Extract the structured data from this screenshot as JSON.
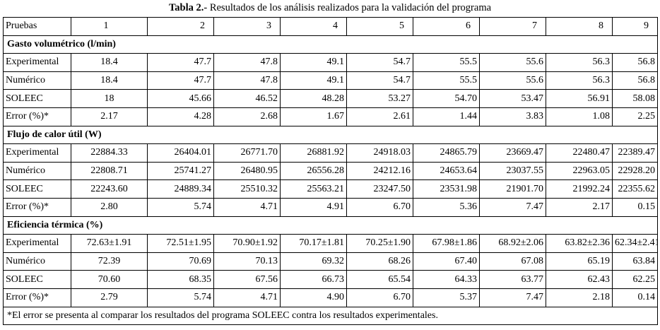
{
  "caption": {
    "prefix": "Tabla 2.",
    "text": "- Resultados de los análisis realizados para la validación del programa"
  },
  "header": {
    "label": "Pruebas",
    "columns": [
      "1",
      "2",
      "3",
      "4",
      "5",
      "6",
      "7",
      "8",
      "9"
    ]
  },
  "sections": [
    {
      "title": "Gasto volumétrico (l/min)",
      "rows": [
        {
          "label": "Experimental",
          "values": [
            "18.4",
            "47.7",
            "47.8",
            "49.1",
            "54.7",
            "55.5",
            "55.6",
            "56.3",
            "56.8"
          ]
        },
        {
          "label": "Numérico",
          "values": [
            "18.4",
            "47.7",
            "47.8",
            "49.1",
            "54.7",
            "55.5",
            "55.6",
            "56.3",
            "56.8"
          ]
        },
        {
          "label": "SOLEEC",
          "values": [
            "18",
            "45.66",
            "46.52",
            "48.28",
            "53.27",
            "54.70",
            "53.47",
            "56.91",
            "58.08"
          ]
        },
        {
          "label": "Error (%)*",
          "values": [
            "2.17",
            "4.28",
            "2.68",
            "1.67",
            "2.61",
            "1.44",
            "3.83",
            "1.08",
            "2.25"
          ]
        }
      ]
    },
    {
      "title": "Flujo de calor útil (W)",
      "rows": [
        {
          "label": "Experimental",
          "values": [
            "22884.33",
            "26404.01",
            "26771.70",
            "26881.92",
            "24918.03",
            "24865.79",
            "23669.47",
            "22480.47",
            "22389.47"
          ]
        },
        {
          "label": "Numérico",
          "values": [
            "22808.71",
            "25741.27",
            "26480.95",
            "26556.28",
            "24212.16",
            "24653.64",
            "23037.55",
            "22963.05",
            "22928.20"
          ]
        },
        {
          "label": "SOLEEC",
          "values": [
            "22243.60",
            "24889.34",
            "25510.32",
            "25563.21",
            "23247.50",
            "23531.98",
            "21901.70",
            "21992.24",
            "22355.62"
          ]
        },
        {
          "label": "Error (%)*",
          "values": [
            "2.80",
            "5.74",
            "4.71",
            "4.91",
            "6.70",
            "5.36",
            "7.47",
            "2.17",
            "0.15"
          ]
        }
      ]
    },
    {
      "title": "Eficiencia térmica (%)",
      "rows": [
        {
          "label": "Experimental",
          "values": [
            "72.63±1.91",
            "72.51±1.95",
            "70.90±1.92",
            "70.17±1.81",
            "70.25±1.90",
            "67.98±1.86",
            "68.92±2.06",
            "63.82±2.36",
            "62.34±2.41"
          ]
        },
        {
          "label": "Numérico",
          "values": [
            "72.39",
            "70.69",
            "70.13",
            "69.32",
            "68.26",
            "67.40",
            "67.08",
            "65.19",
            "63.84"
          ]
        },
        {
          "label": "SOLEEC",
          "values": [
            "70.60",
            "68.35",
            "67.56",
            "66.73",
            "65.54",
            "64.33",
            "63.77",
            "62.43",
            "62.25"
          ]
        },
        {
          "label": "Error (%)*",
          "values": [
            "2.79",
            "5.74",
            "4.71",
            "4.90",
            "6.70",
            "5.37",
            "7.47",
            "2.18",
            "0.14"
          ]
        }
      ]
    }
  ],
  "footnote": "*El error se presenta al comparar los resultados del programa SOLEEC contra los resultados experimentales."
}
